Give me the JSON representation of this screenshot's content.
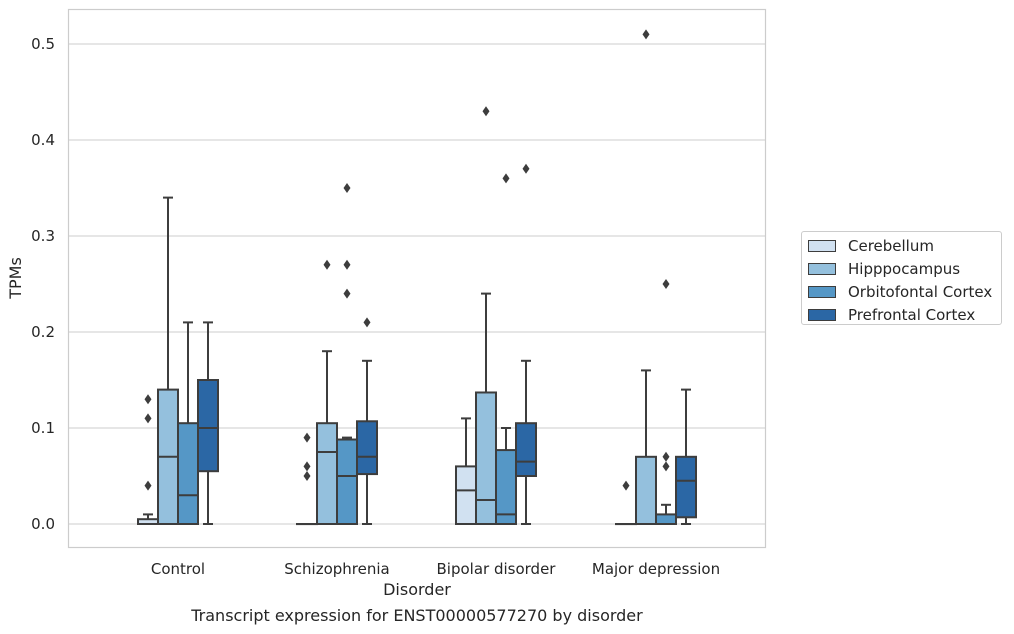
{
  "caption": "Transcript expression for ENST00000577270 by disorder",
  "chart_data": {
    "type": "box",
    "title": "",
    "xlabel": "Disorder",
    "ylabel": "TPMs",
    "ylim": [
      -0.025,
      0.537
    ],
    "yticks": [
      0.0,
      0.1,
      0.2,
      0.3,
      0.4,
      0.5
    ],
    "ytick_labels": [
      "0.0",
      "0.1",
      "0.2",
      "0.3",
      "0.4",
      "0.5"
    ],
    "grid": true,
    "legend_position": "right",
    "categories": [
      "Control",
      "Schizophrenia",
      "Bipolar disorder",
      "Major depression"
    ],
    "series": [
      {
        "name": "Cerebellum",
        "color": "#d1e1f1",
        "boxes": [
          {
            "whislo": 0.0,
            "q1": 0.0,
            "med": 0.0,
            "q3": 0.005,
            "whishi": 0.01,
            "fliers": [
              0.04,
              0.11,
              0.13
            ]
          },
          {
            "whislo": 0.0,
            "q1": 0.0,
            "med": 0.0,
            "q3": 0.0,
            "whishi": 0.0,
            "fliers": [
              0.05,
              0.06,
              0.09
            ]
          },
          {
            "whislo": 0.0,
            "q1": 0.0,
            "med": 0.035,
            "q3": 0.06,
            "whishi": 0.11,
            "fliers": []
          },
          {
            "whislo": 0.0,
            "q1": 0.0,
            "med": 0.0,
            "q3": 0.0,
            "whishi": 0.0,
            "fliers": [
              0.04
            ]
          }
        ]
      },
      {
        "name": "Hipppocampus",
        "color": "#94c0dd",
        "boxes": [
          {
            "whislo": 0.0,
            "q1": 0.0,
            "med": 0.07,
            "q3": 0.14,
            "whishi": 0.34,
            "fliers": []
          },
          {
            "whislo": 0.0,
            "q1": 0.0,
            "med": 0.075,
            "q3": 0.105,
            "whishi": 0.18,
            "fliers": [
              0.27
            ]
          },
          {
            "whislo": 0.0,
            "q1": 0.0,
            "med": 0.025,
            "q3": 0.137,
            "whishi": 0.24,
            "fliers": [
              0.43
            ]
          },
          {
            "whislo": 0.0,
            "q1": 0.0,
            "med": 0.0,
            "q3": 0.07,
            "whishi": 0.16,
            "fliers": [
              0.51
            ]
          }
        ]
      },
      {
        "name": "Orbitofontal Cortex",
        "color": "#5597c6",
        "boxes": [
          {
            "whislo": 0.0,
            "q1": 0.0,
            "med": 0.03,
            "q3": 0.105,
            "whishi": 0.21,
            "fliers": []
          },
          {
            "whislo": 0.0,
            "q1": 0.0,
            "med": 0.05,
            "q3": 0.088,
            "whishi": 0.09,
            "fliers": [
              0.24,
              0.27,
              0.35
            ]
          },
          {
            "whislo": 0.0,
            "q1": 0.0,
            "med": 0.01,
            "q3": 0.077,
            "whishi": 0.1,
            "fliers": [
              0.36
            ]
          },
          {
            "whislo": 0.0,
            "q1": 0.0,
            "med": 0.0,
            "q3": 0.01,
            "whishi": 0.02,
            "fliers": [
              0.06,
              0.07,
              0.25
            ]
          }
        ]
      },
      {
        "name": "Prefrontal Cortex",
        "color": "#2b67a5",
        "boxes": [
          {
            "whislo": 0.0,
            "q1": 0.055,
            "med": 0.1,
            "q3": 0.15,
            "whishi": 0.21,
            "fliers": []
          },
          {
            "whislo": 0.0,
            "q1": 0.052,
            "med": 0.07,
            "q3": 0.107,
            "whishi": 0.17,
            "fliers": [
              0.21
            ]
          },
          {
            "whislo": 0.0,
            "q1": 0.05,
            "med": 0.065,
            "q3": 0.105,
            "whishi": 0.17,
            "fliers": [
              0.37
            ]
          },
          {
            "whislo": 0.0,
            "q1": 0.007,
            "med": 0.045,
            "q3": 0.07,
            "whishi": 0.14,
            "fliers": []
          }
        ]
      }
    ]
  }
}
